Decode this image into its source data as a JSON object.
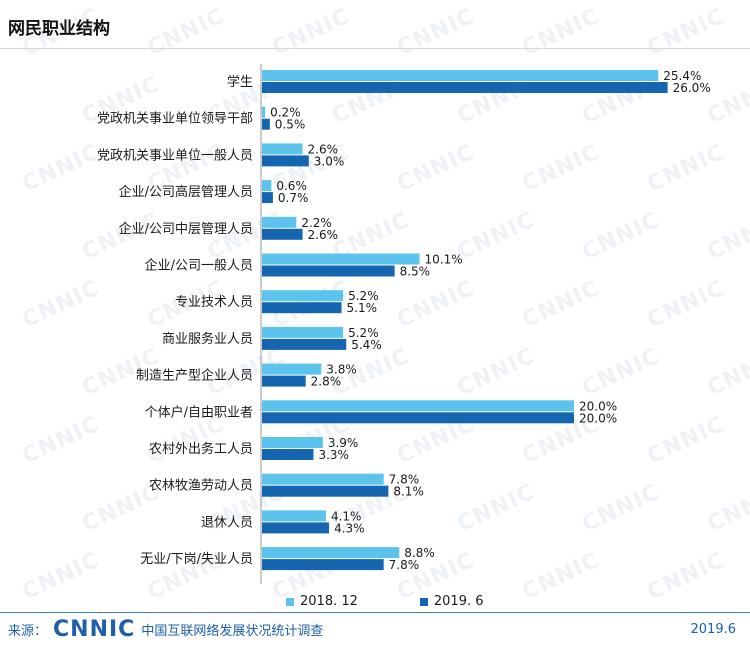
{
  "chart_data": {
    "type": "bar",
    "orientation": "horizontal",
    "title": "网民职业结构",
    "categories": [
      "学生",
      "党政机关事业单位领导干部",
      "党政机关事业单位一般人员",
      "企业/公司高层管理人员",
      "企业/公司中层管理人员",
      "企业/公司一般人员",
      "专业技术人员",
      "商业服务业人员",
      "制造生产型企业人员",
      "个体户/自由职业者",
      "农村外出务工人员",
      "农林牧渔劳动人员",
      "退休人员",
      "无业/下岗/失业人员"
    ],
    "series": [
      {
        "name": "2018. 12",
        "color": "#5bc3ec",
        "values": [
          25.4,
          0.2,
          2.6,
          0.6,
          2.2,
          10.1,
          5.2,
          5.2,
          3.8,
          20.0,
          3.9,
          7.8,
          4.1,
          8.8
        ],
        "labels": [
          "25.4%",
          "0.2%",
          "2.6%",
          "0.6%",
          "2.2%",
          "10.1%",
          "5.2%",
          "5.2%",
          "3.8%",
          "20.0%",
          "3.9%",
          "7.8%",
          "4.1%",
          "8.8%"
        ]
      },
      {
        "name": "2019. 6",
        "color": "#1565b0",
        "values": [
          26.0,
          0.5,
          3.0,
          0.7,
          2.6,
          8.5,
          5.1,
          5.4,
          2.8,
          20.0,
          3.3,
          8.1,
          4.3,
          7.8
        ],
        "labels": [
          "26.0%",
          "0.5%",
          "3.0%",
          "0.7%",
          "2.6%",
          "8.5%",
          "5.1%",
          "5.4%",
          "2.8%",
          "20.0%",
          "3.3%",
          "8.1%",
          "4.3%",
          "7.8%"
        ]
      }
    ],
    "xlim": [
      0,
      27
    ],
    "legend_position": "bottom",
    "grid": false
  },
  "footer": {
    "source_label": "来源：",
    "logo": "CNNIC",
    "org": "中国互联网络发展状况统计调查",
    "date": "2019.6"
  },
  "watermark": "CNNIC"
}
